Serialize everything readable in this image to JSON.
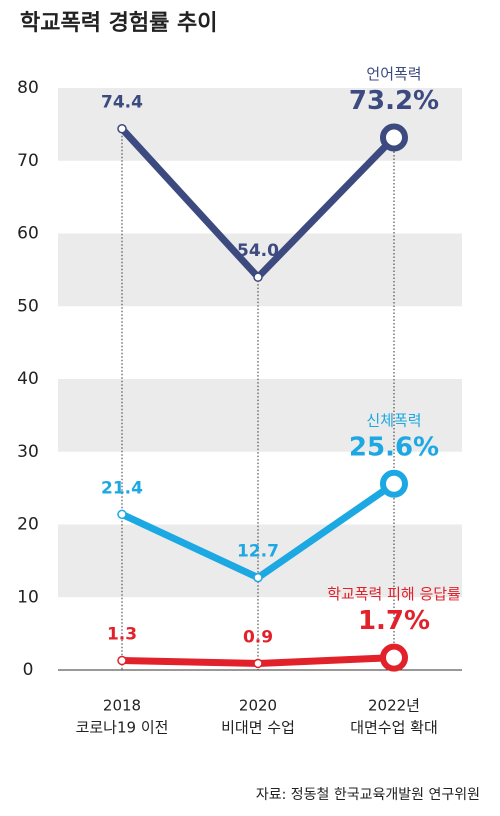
{
  "chart_data": {
    "type": "line",
    "title": "학교폭력 경험률 추이",
    "categories": [
      [
        "2018",
        "코로나19 이전"
      ],
      [
        "2020",
        "비대면 수업"
      ],
      [
        "2022년",
        "대면수업 확대"
      ]
    ],
    "series": [
      {
        "name": "언어폭력",
        "color": "#3d4a80",
        "values": [
          74.4,
          54.0,
          73.2
        ],
        "value_labels": [
          "74.4",
          "54.0",
          "73.2%"
        ]
      },
      {
        "name": "신체폭력",
        "color": "#1ca8e2",
        "values": [
          21.4,
          12.7,
          25.6
        ],
        "value_labels": [
          "21.4",
          "12.7",
          "25.6%"
        ]
      },
      {
        "name": "학교폭력 피해 응답률",
        "color": "#e2222b",
        "values": [
          1.3,
          0.9,
          1.7
        ],
        "value_labels": [
          "1.3",
          "0.9",
          "1.7%"
        ]
      }
    ],
    "ylim": [
      0,
      80
    ],
    "yticks": [
      0,
      10,
      20,
      30,
      40,
      50,
      60,
      70,
      80
    ],
    "source": "자료: 정동철 한국교육개발원 연구위원"
  }
}
